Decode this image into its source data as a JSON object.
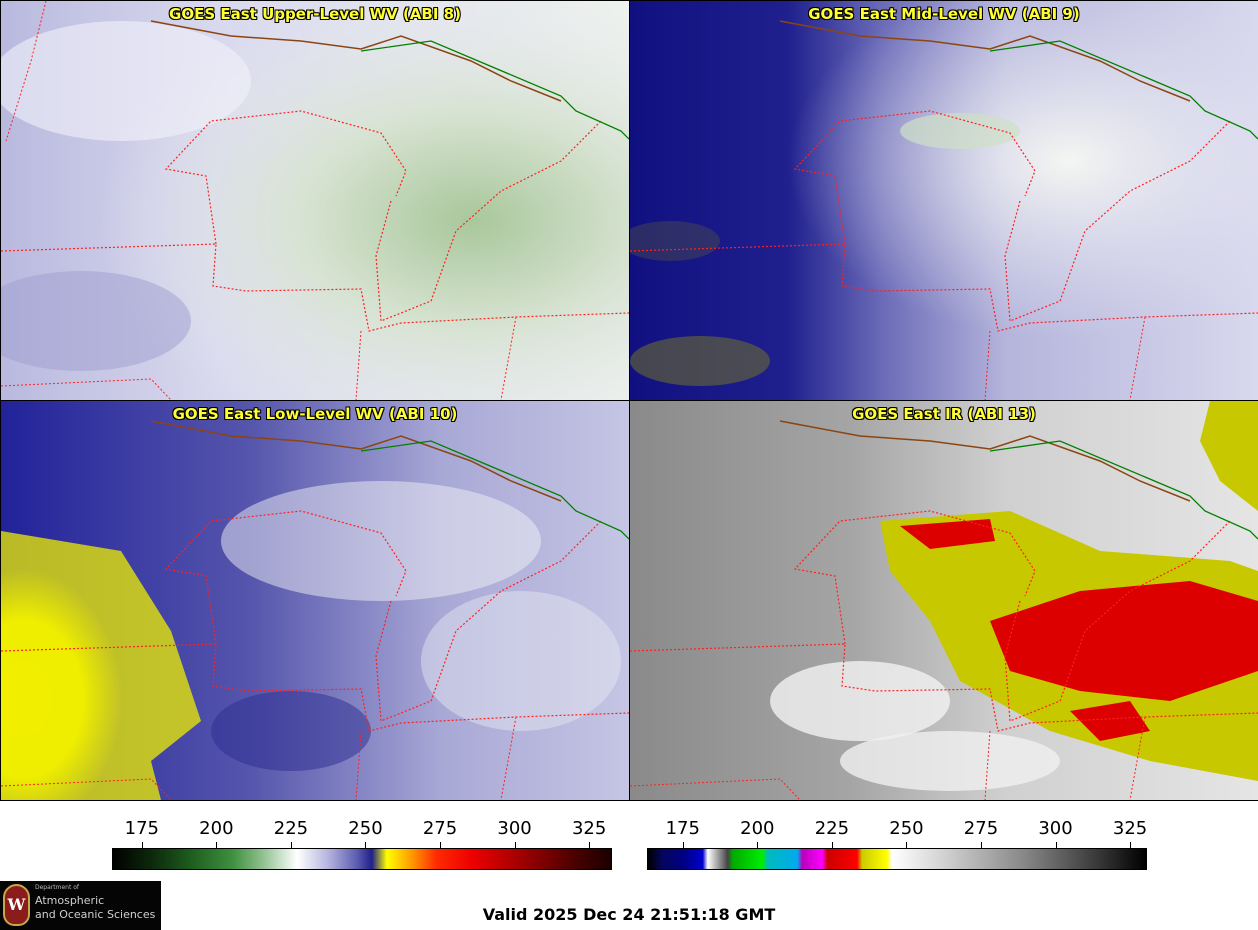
{
  "panels": [
    {
      "title": "GOES East Upper-Level WV (ABI 8)"
    },
    {
      "title": "GOES East Mid-Level WV (ABI 9)"
    },
    {
      "title": "GOES East Low-Level WV (ABI 10)"
    },
    {
      "title": "GOES East IR (ABI 13)"
    }
  ],
  "colorbars": [
    {
      "ticks": [
        "175",
        "200",
        "225",
        "250",
        "275",
        "300",
        "325"
      ],
      "range": [
        165,
        332
      ]
    },
    {
      "ticks": [
        "175",
        "200",
        "225",
        "250",
        "275",
        "300",
        "325"
      ],
      "range": [
        163,
        330
      ]
    }
  ],
  "logo": {
    "dept": "Department of",
    "line1": "Atmospheric",
    "line2": "and Oceanic Sciences",
    "seal_letter": "W"
  },
  "valid_time": "Valid 2025 Dec 24 21:51:18 GMT",
  "colors": {
    "border_lines": "#ff2020",
    "coast_line": "#8b4513",
    "intl_border": "#008000",
    "title_text": "#ffff33"
  }
}
